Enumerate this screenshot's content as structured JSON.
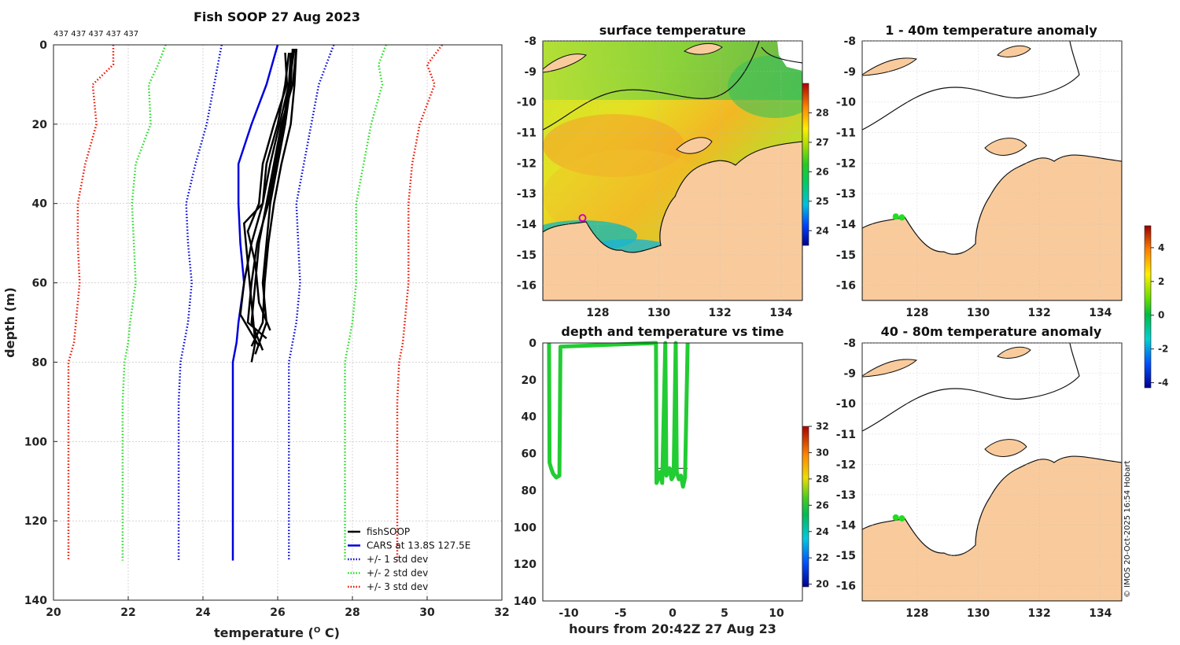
{
  "figure": {
    "main_title": "Fish SOOP 27 Aug 2023",
    "top_counts": "437 437 437 437 437",
    "copyright": "© IMOS 20-Oct-2025 16:54 Hobart"
  },
  "chart_data": [
    {
      "id": "profile",
      "type": "line",
      "title": "Fish SOOP 27 Aug 2023",
      "xlabel": "temperature (",
      "xlabel_sup": "O",
      "xlabel_end": " C)",
      "ylabel": "depth (m)",
      "xlim": [
        20,
        32
      ],
      "ylim": [
        0,
        140
      ],
      "xticks": [
        20,
        22,
        24,
        26,
        28,
        30,
        32
      ],
      "yticks": [
        0,
        20,
        40,
        60,
        80,
        100,
        120,
        140
      ],
      "grid": true,
      "legend_position": "bottom-right",
      "depths": [
        0,
        5,
        10,
        20,
        30,
        40,
        50,
        60,
        70,
        75,
        80,
        90,
        100,
        110,
        120,
        130
      ],
      "series": [
        {
          "name": "CARS at 13.8S 127.5E",
          "color": "#0000dd",
          "style": "solid",
          "values": [
            26.0,
            25.85,
            25.7,
            25.3,
            24.95,
            24.95,
            25.0,
            25.1,
            24.95,
            24.9,
            24.8,
            24.8,
            24.8,
            24.8,
            24.8,
            24.8
          ]
        },
        {
          "name": "+/- 1 std dev",
          "color": "#0000dd",
          "style": "dotted",
          "values": [
            24.5,
            24.4,
            24.3,
            24.1,
            23.8,
            23.55,
            23.6,
            23.7,
            23.6,
            23.5,
            23.4,
            23.35,
            23.35,
            23.35,
            23.35,
            23.35
          ],
          "mirror": [
            27.5,
            27.3,
            27.1,
            26.9,
            26.7,
            26.5,
            26.55,
            26.6,
            26.5,
            26.4,
            26.3,
            26.3,
            26.3,
            26.3,
            26.3,
            26.3
          ]
        },
        {
          "name": "+/- 2 std dev",
          "color": "#22dd22",
          "style": "dotted",
          "values": [
            23.0,
            22.8,
            22.55,
            22.6,
            22.2,
            22.1,
            22.15,
            22.2,
            22.05,
            22.0,
            21.9,
            21.85,
            21.85,
            21.85,
            21.85,
            21.85
          ],
          "mirror": [
            28.9,
            28.7,
            28.8,
            28.5,
            28.3,
            28.1,
            28.1,
            28.1,
            28.0,
            27.9,
            27.8,
            27.8,
            27.8,
            27.8,
            27.8,
            27.8
          ]
        },
        {
          "name": "+/- 3 std dev",
          "color": "#ee1100",
          "style": "dotted",
          "values": [
            21.6,
            21.6,
            21.05,
            21.15,
            20.85,
            20.65,
            20.65,
            20.7,
            20.6,
            20.55,
            20.4,
            20.4,
            20.4,
            20.4,
            20.4,
            20.4
          ],
          "mirror": [
            30.4,
            30.0,
            30.2,
            29.8,
            29.6,
            29.5,
            29.5,
            29.5,
            29.4,
            29.35,
            29.25,
            29.2,
            29.2,
            29.2,
            29.2,
            29.2
          ]
        }
      ],
      "fish_profiles": [
        {
          "depths": [
            1,
            10,
            20,
            30,
            40,
            50,
            60,
            70,
            78
          ],
          "values": [
            26.4,
            26.35,
            26.2,
            26.0,
            25.8,
            25.7,
            25.6,
            25.7,
            25.4
          ]
        },
        {
          "depths": [
            1,
            10,
            20,
            30,
            40,
            50,
            60,
            70,
            76
          ],
          "values": [
            26.5,
            26.45,
            26.35,
            26.1,
            25.9,
            25.75,
            25.65,
            25.6,
            25.3
          ]
        },
        {
          "depths": [
            2,
            10,
            20,
            30,
            40,
            45,
            55,
            65,
            75,
            80
          ],
          "values": [
            26.3,
            26.2,
            26.0,
            25.7,
            25.6,
            25.1,
            25.2,
            25.3,
            25.4,
            25.3
          ]
        },
        {
          "depths": [
            1,
            10,
            20,
            30,
            40,
            50,
            60,
            70,
            77
          ],
          "values": [
            26.5,
            26.4,
            26.1,
            25.9,
            25.7,
            25.5,
            25.4,
            25.3,
            25.6
          ]
        },
        {
          "depths": [
            2,
            10,
            20,
            30,
            40,
            47,
            55,
            65,
            72
          ],
          "values": [
            26.2,
            26.25,
            25.9,
            25.6,
            25.5,
            25.2,
            25.4,
            25.5,
            25.8
          ]
        },
        {
          "depths": [
            1,
            10,
            20,
            30,
            40,
            50,
            60,
            68,
            76
          ],
          "values": [
            26.45,
            26.3,
            26.05,
            25.8,
            25.6,
            25.3,
            25.1,
            25.0,
            25.5
          ]
        },
        {
          "depths": [
            2,
            10,
            20,
            30,
            40,
            50,
            60,
            70,
            74
          ],
          "values": [
            26.35,
            26.3,
            26.15,
            25.95,
            25.75,
            25.45,
            25.3,
            25.2,
            25.7
          ]
        }
      ],
      "legend": [
        "fishSOOP",
        "CARS at 13.8S 127.5E",
        "+/- 1 std dev",
        "+/- 2 std dev",
        "+/- 3 std dev"
      ],
      "legend_colors": [
        "#000000",
        "#0000dd",
        "#0000dd",
        "#22dd22",
        "#ee1100"
      ]
    },
    {
      "id": "sst",
      "type": "heatmap",
      "title": "surface temperature",
      "xlim": [
        126.2,
        134.7
      ],
      "ylim": [
        -16.5,
        -8
      ],
      "xticks": [
        128,
        130,
        132,
        134
      ],
      "yticks": [
        -8,
        -9,
        -10,
        -11,
        -12,
        -13,
        -14,
        -15,
        -16
      ],
      "colorbar": {
        "range": [
          23.5,
          29
        ],
        "ticks": [
          24,
          25,
          26,
          27,
          28
        ]
      },
      "marker": {
        "lon": 127.5,
        "lat": -13.8,
        "color": "#cc00cc"
      }
    },
    {
      "id": "anomaly_1_40",
      "type": "heatmap",
      "title": "1 - 40m temperature anomaly",
      "xlim": [
        126.2,
        134.7
      ],
      "ylim": [
        -16.5,
        -8
      ],
      "xticks": [
        128,
        130,
        132,
        134
      ],
      "yticks": [
        -8,
        -9,
        -10,
        -11,
        -12,
        -13,
        -14,
        -15,
        -16
      ],
      "points": {
        "lon": [
          127.3,
          127.5
        ],
        "lat": [
          -13.75,
          -13.78
        ],
        "color": "#22dd22"
      }
    },
    {
      "id": "anomaly_40_80",
      "type": "heatmap",
      "title": "40 - 80m temperature anomaly",
      "xlim": [
        126.2,
        134.7
      ],
      "ylim": [
        -16.5,
        -8
      ],
      "xticks": [
        128,
        130,
        132,
        134
      ],
      "yticks": [
        -8,
        -9,
        -10,
        -11,
        -12,
        -13,
        -14,
        -15,
        -16
      ],
      "points": {
        "lon": [
          127.3,
          127.5
        ],
        "lat": [
          -13.75,
          -13.78
        ],
        "color": "#22dd22"
      }
    },
    {
      "id": "anomaly_colorbar",
      "type": "heatmap",
      "range": [
        -4.3,
        5.3
      ],
      "ticks": [
        -4,
        -2,
        0,
        2,
        4
      ]
    },
    {
      "id": "depth_time",
      "type": "scatter",
      "title": "depth and temperature vs time",
      "xlabel": "hours from 20:42Z 27 Aug 23",
      "xlim": [
        -12.5,
        12.5
      ],
      "ylim": [
        0,
        140
      ],
      "xticks": [
        -10,
        -5,
        0,
        5,
        10
      ],
      "yticks": [
        0,
        20,
        40,
        60,
        80,
        100,
        120,
        140
      ],
      "colorbar": {
        "range": [
          19.8,
          32
        ],
        "ticks": [
          20,
          22,
          24,
          26,
          28,
          30,
          32
        ]
      },
      "color": "#22cc33",
      "track": [
        [
          -11.9,
          0
        ],
        [
          -11.85,
          65
        ],
        [
          -11.7,
          68
        ],
        [
          -11.5,
          71
        ],
        [
          -11.2,
          73
        ],
        [
          -10.9,
          72
        ],
        [
          -10.8,
          2
        ],
        [
          -1.6,
          0
        ],
        [
          -1.55,
          76
        ],
        [
          -1.4,
          74
        ],
        [
          -1.2,
          70
        ],
        [
          -1.0,
          76
        ],
        [
          -0.7,
          0
        ],
        [
          -0.6,
          72
        ],
        [
          -0.3,
          68
        ],
        [
          -0.1,
          74
        ],
        [
          0.1,
          72
        ],
        [
          0.3,
          0
        ],
        [
          0.4,
          70
        ],
        [
          0.6,
          74
        ],
        [
          0.8,
          72
        ],
        [
          1.0,
          78
        ],
        [
          1.2,
          73
        ],
        [
          1.45,
          0
        ]
      ]
    }
  ]
}
